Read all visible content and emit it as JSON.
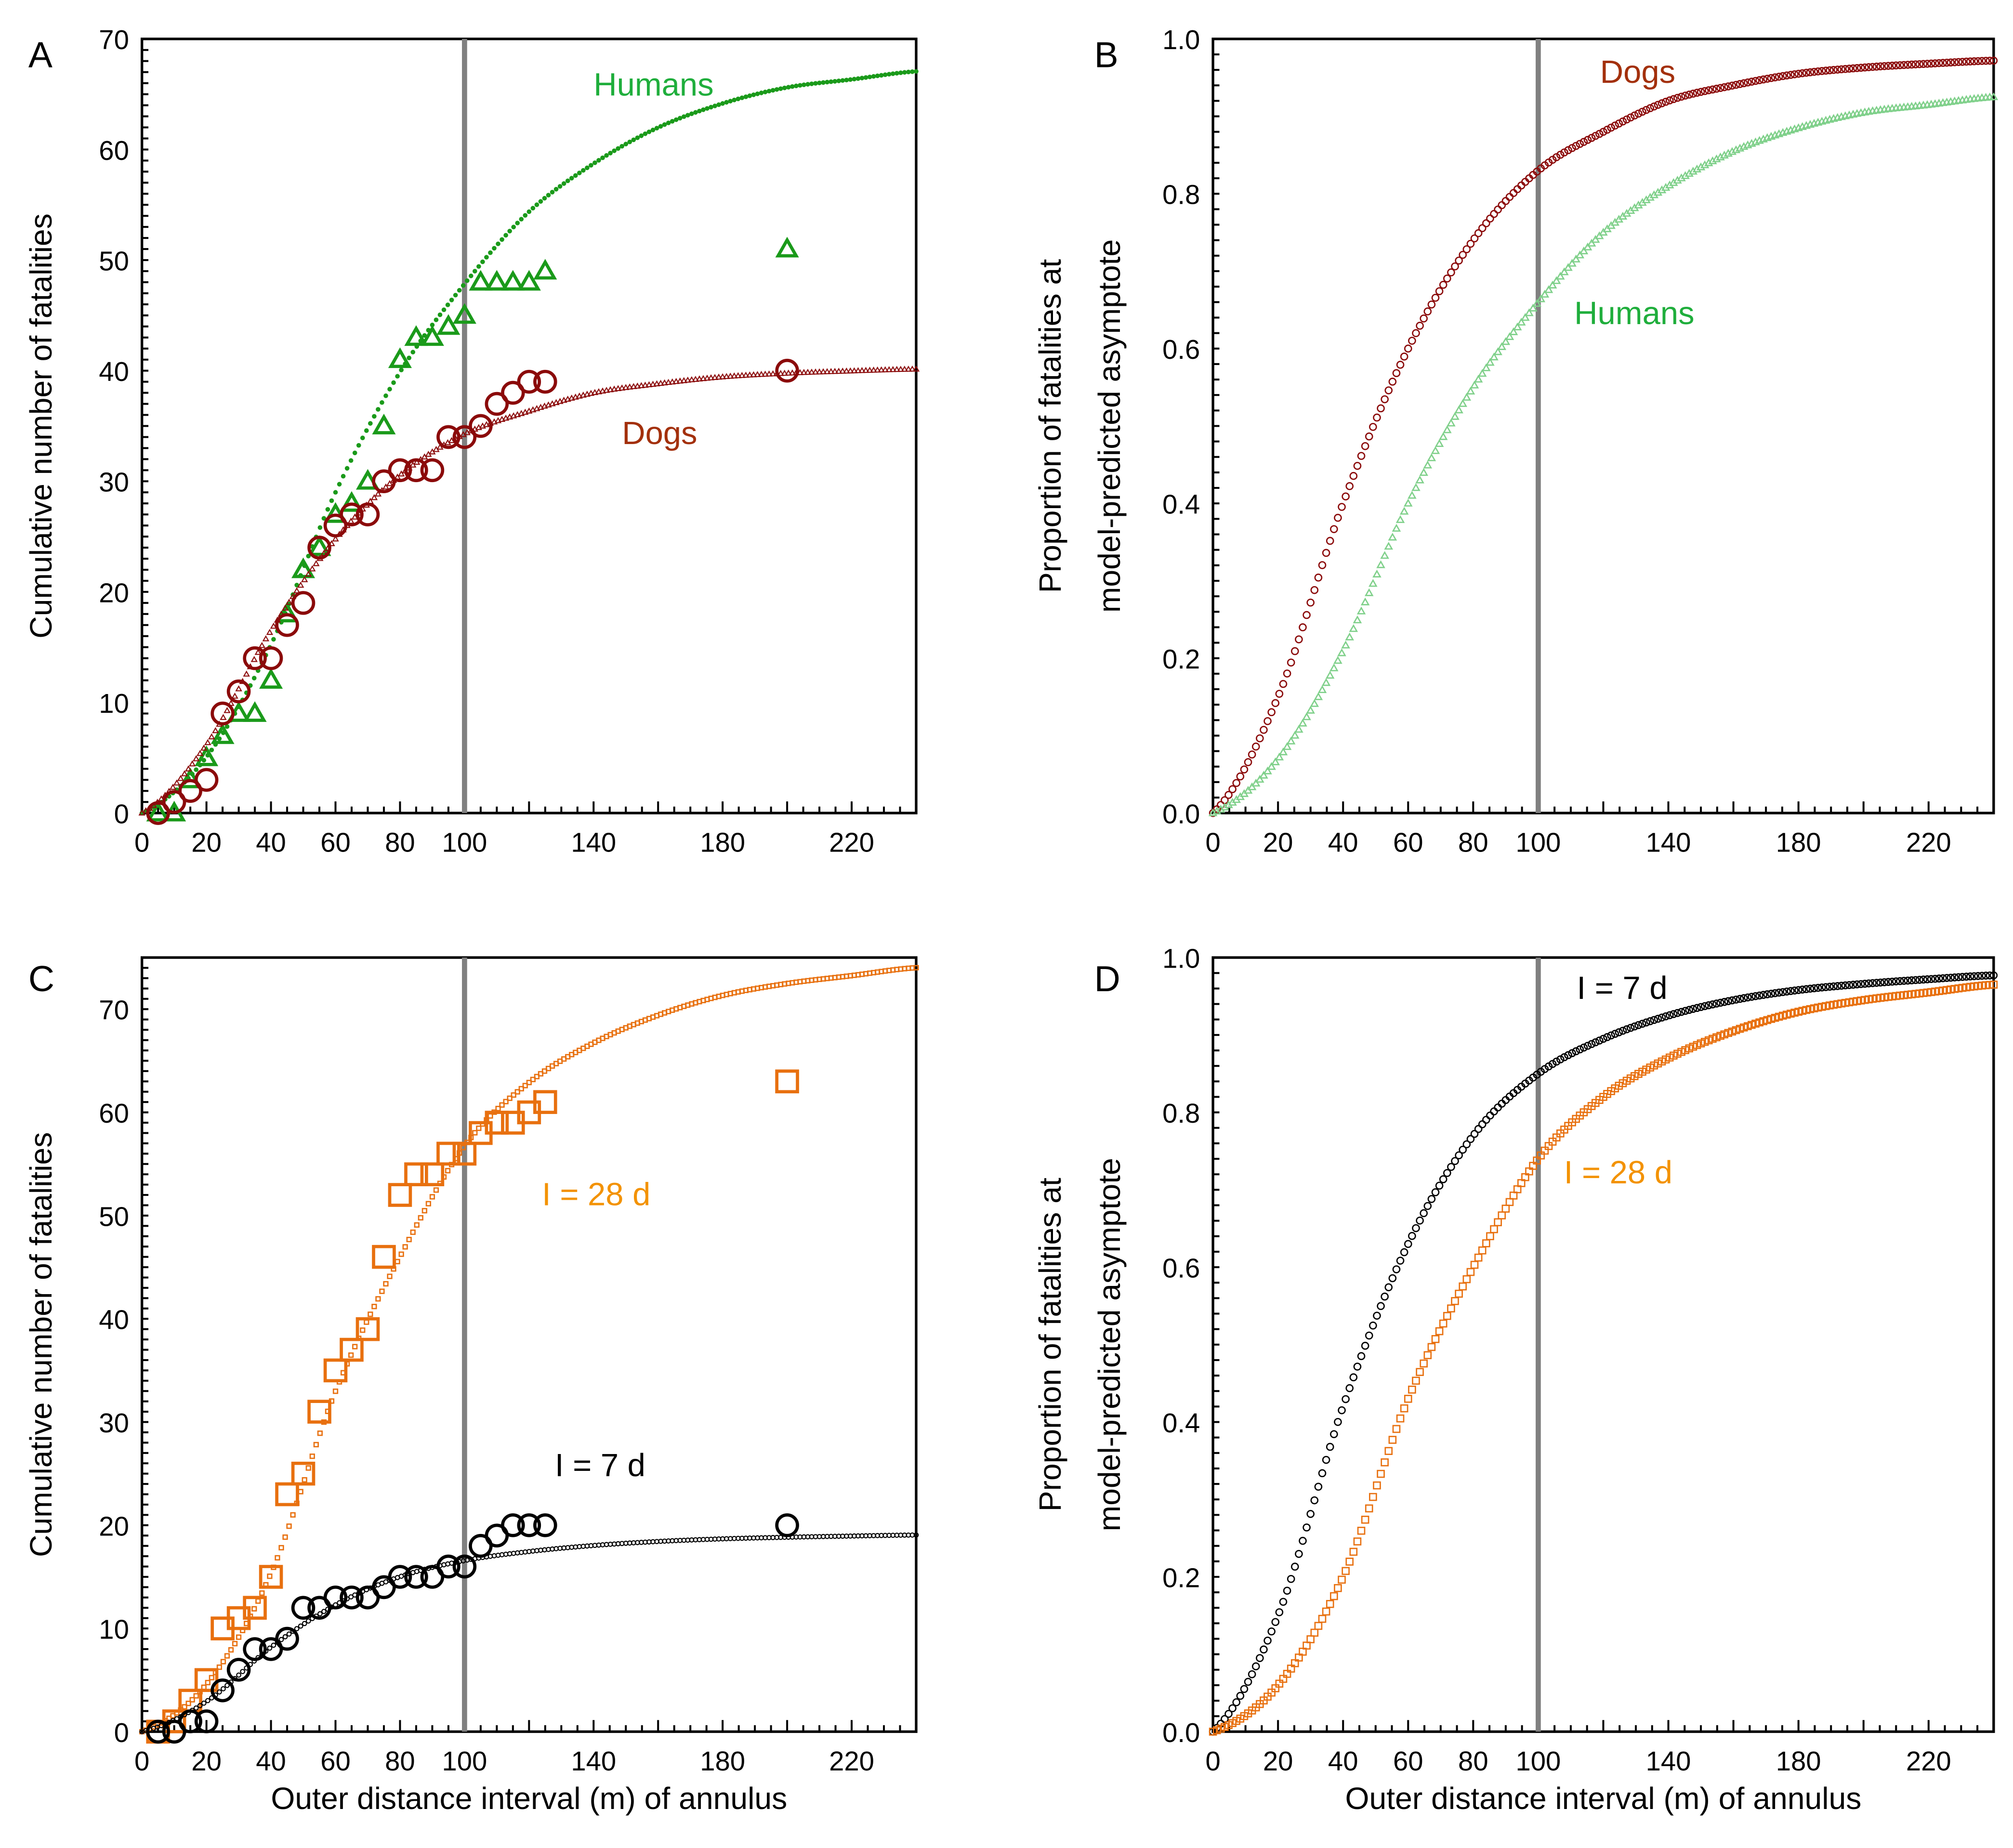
{
  "chart_data": [
    {
      "panel": "A",
      "type": "scatter",
      "ylabel": "Cumulative number of fatalities",
      "xlabel": "",
      "xlim": [
        0,
        240
      ],
      "ylim": [
        0,
        70
      ],
      "xticks": [
        0,
        20,
        40,
        60,
        80,
        100,
        140,
        180,
        220
      ],
      "yticks": [
        0,
        10,
        20,
        30,
        40,
        50,
        60,
        70
      ],
      "vline_x": 100,
      "x": [
        5,
        10,
        15,
        20,
        25,
        30,
        35,
        40,
        45,
        50,
        55,
        60,
        65,
        70,
        75,
        80,
        85,
        90,
        95,
        100,
        105,
        110,
        115,
        120,
        125,
        200
      ],
      "series": [
        {
          "name": "Humans",
          "color": "#1a9a1a",
          "marker": "triangle",
          "values": [
            0,
            0,
            3,
            5,
            7,
            9,
            9,
            12,
            18,
            22,
            24,
            27,
            28,
            30,
            35,
            41,
            43,
            43,
            44,
            45,
            48,
            48,
            48,
            48,
            49,
            51
          ],
          "fit_asymptote": 72.5,
          "fit_marker": "dot"
        },
        {
          "name": "Dogs",
          "color": "#8b0a0a",
          "marker": "circle",
          "values": [
            0,
            1,
            2,
            3,
            9,
            11,
            14,
            14,
            17,
            19,
            24,
            26,
            27,
            27,
            30,
            31,
            31,
            31,
            34,
            34,
            35,
            37,
            38,
            39,
            39,
            40
          ],
          "fit_asymptote": 41.3,
          "fit_marker": "small-triangle"
        }
      ],
      "annotations": [
        {
          "text": "Humans",
          "color": "#1fae3c"
        },
        {
          "text": "Dogs",
          "color": "#a3300c"
        }
      ]
    },
    {
      "panel": "B",
      "type": "line",
      "ylabel": [
        "Proportion of fatalities at",
        "model-predicted asymptote"
      ],
      "xlabel": "",
      "xlim": [
        0,
        240
      ],
      "ylim": [
        0,
        1
      ],
      "xticks": [
        0,
        20,
        40,
        60,
        80,
        100,
        140,
        180,
        220
      ],
      "yticks": [
        "0.0",
        "0.2",
        "0.4",
        "0.6",
        "0.8",
        "1.0"
      ],
      "vline_x": 100,
      "x": [
        0,
        20,
        40,
        60,
        80,
        100,
        120,
        140,
        160,
        180,
        200,
        220,
        240
      ],
      "series": [
        {
          "name": "Dogs",
          "color": "#8b0a0a",
          "marker": "circle",
          "values": [
            0,
            0.15,
            0.4,
            0.6,
            0.74,
            0.83,
            0.88,
            0.92,
            0.94,
            0.955,
            0.963,
            0.968,
            0.972
          ]
        },
        {
          "name": "Humans",
          "color": "#7fd08a",
          "marker": "triangle",
          "values": [
            0,
            0.07,
            0.21,
            0.4,
            0.55,
            0.66,
            0.75,
            0.81,
            0.855,
            0.885,
            0.905,
            0.915,
            0.925
          ]
        }
      ],
      "annotations": [
        {
          "text": "Dogs",
          "color": "#a3300c"
        },
        {
          "text": "Humans",
          "color": "#1fae3c"
        }
      ]
    },
    {
      "panel": "C",
      "type": "scatter",
      "ylabel": "Cumulative number of fatalities",
      "xlabel": "Outer distance interval (m) of annulus",
      "xlim": [
        0,
        240
      ],
      "ylim": [
        0,
        75
      ],
      "xticks": [
        0,
        20,
        40,
        60,
        80,
        100,
        140,
        180,
        220
      ],
      "yticks": [
        0,
        10,
        20,
        30,
        40,
        50,
        60,
        70
      ],
      "vline_x": 100,
      "x": [
        5,
        10,
        15,
        20,
        25,
        30,
        35,
        40,
        45,
        50,
        55,
        60,
        65,
        70,
        75,
        80,
        85,
        90,
        95,
        100,
        105,
        110,
        115,
        120,
        125,
        200
      ],
      "series": [
        {
          "name": "I = 28 d",
          "color": "#e8700f",
          "marker": "square",
          "values": [
            0,
            1,
            3,
            5,
            10,
            11,
            12,
            15,
            23,
            25,
            31,
            35,
            37,
            39,
            46,
            52,
            54,
            54,
            56,
            56,
            58,
            59,
            59,
            60,
            61,
            63
          ],
          "fit_asymptote": 76.7,
          "fit_marker": "small-square"
        },
        {
          "name": "I = 7 d",
          "color": "#000000",
          "marker": "circle",
          "values": [
            0,
            0,
            1,
            1,
            4,
            6,
            8,
            8,
            9,
            12,
            12,
            13,
            13,
            13,
            14,
            15,
            15,
            15,
            16,
            16,
            18,
            19,
            20,
            20,
            20,
            20
          ],
          "fit_asymptote": 19.5,
          "fit_marker": "small-circle"
        }
      ],
      "annotations": [
        {
          "text": "I = 28 d",
          "color": "#f39200"
        },
        {
          "text": "I = 7 d",
          "color": "#000000"
        }
      ]
    },
    {
      "panel": "D",
      "type": "line",
      "ylabel": [
        "Proportion of fatalities at",
        "model-predicted asymptote"
      ],
      "xlabel": "Outer distance interval (m) of annulus",
      "xlim": [
        0,
        240
      ],
      "ylim": [
        0,
        1
      ],
      "xticks": [
        0,
        20,
        40,
        60,
        80,
        100,
        140,
        180,
        220
      ],
      "yticks": [
        "0.0",
        "0.2",
        "0.4",
        "0.6",
        "0.8",
        "1.0"
      ],
      "vline_x": 100,
      "x": [
        0,
        20,
        40,
        60,
        80,
        100,
        120,
        140,
        160,
        180,
        200,
        220,
        240
      ],
      "series": [
        {
          "name": "I = 7 d",
          "color": "#000000",
          "marker": "circle",
          "values": [
            0,
            0.15,
            0.42,
            0.63,
            0.77,
            0.85,
            0.895,
            0.925,
            0.945,
            0.958,
            0.966,
            0.972,
            0.977
          ]
        },
        {
          "name": "I = 28 d",
          "color": "#e8700f",
          "marker": "square",
          "values": [
            0,
            0.06,
            0.2,
            0.43,
            0.6,
            0.74,
            0.82,
            0.87,
            0.905,
            0.93,
            0.945,
            0.955,
            0.965
          ]
        }
      ],
      "annotations": [
        {
          "text": "I = 7 d",
          "color": "#000000"
        },
        {
          "text": "I = 28 d",
          "color": "#f39200"
        }
      ]
    }
  ]
}
